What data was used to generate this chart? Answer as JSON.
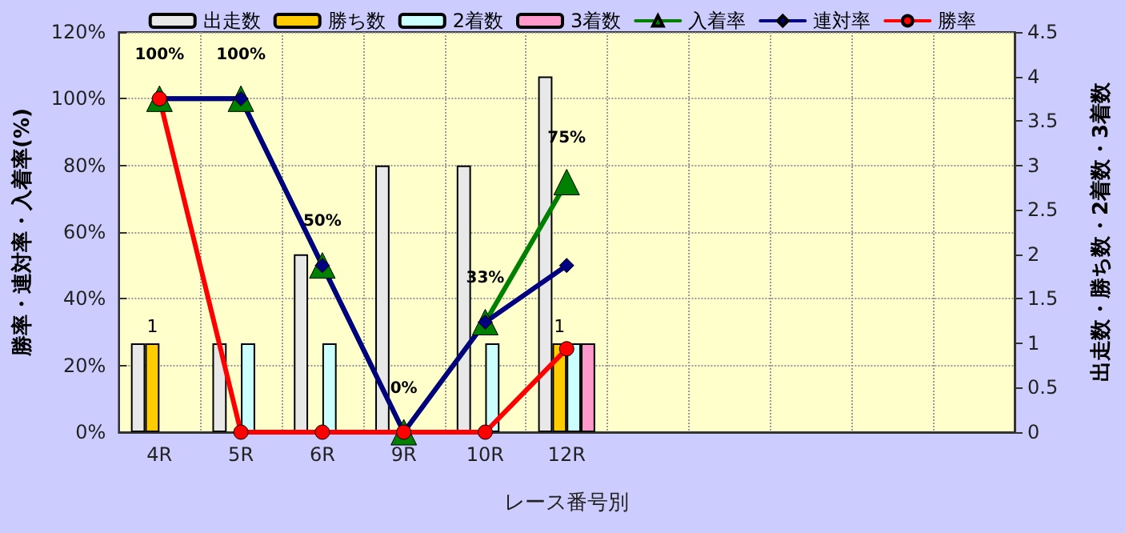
{
  "chart_data": {
    "type": "bar",
    "xlabel": "レース番号別",
    "ylabel": "勝率・連対率・入着率(%)",
    "y2label": "出走数・勝ち数・2着数・3着数",
    "categories": [
      "4R",
      "5R",
      "6R",
      "9R",
      "10R",
      "12R",
      null,
      null,
      null,
      null,
      null
    ],
    "series": [
      {
        "name": "出走数",
        "axis": "y2",
        "color": "#e8e8e8",
        "values": [
          1,
          1,
          2,
          3,
          3,
          4,
          null,
          null,
          null,
          null,
          null
        ]
      },
      {
        "name": "勝ち数",
        "axis": "y2",
        "color": "#ffcc00",
        "values": [
          1,
          0,
          0,
          0,
          0,
          1,
          null,
          null,
          null,
          null,
          null
        ],
        "value_labels": [
          "1",
          null,
          null,
          null,
          null,
          "1",
          null,
          null,
          null,
          null,
          null
        ]
      },
      {
        "name": "2着数",
        "axis": "y2",
        "color": "#ccffff",
        "values": [
          0,
          1,
          1,
          0,
          1,
          1,
          null,
          null,
          null,
          null,
          null
        ]
      },
      {
        "name": "3着数",
        "axis": "y2",
        "color": "#ff99cc",
        "values": [
          0,
          0,
          0,
          0,
          0,
          1,
          null,
          null,
          null,
          null,
          null
        ]
      },
      {
        "name": "入着率",
        "type": "line",
        "color": "#008000",
        "marker": "triangle",
        "values": [
          100,
          100,
          50,
          0,
          33,
          75,
          null,
          null,
          null,
          null,
          null
        ],
        "value_labels": [
          "100%",
          "100%",
          "50%",
          "0%",
          "33%",
          "75%",
          null,
          null,
          null,
          null,
          null
        ]
      },
      {
        "name": "連対率",
        "type": "line",
        "color": "#000080",
        "marker": "diamond",
        "values": [
          100,
          100,
          50,
          0,
          33,
          50,
          null,
          null,
          null,
          null,
          null
        ]
      },
      {
        "name": "勝率",
        "type": "line",
        "color": "#ff0000",
        "marker": "circle",
        "values": [
          100,
          0,
          0,
          0,
          0,
          25,
          null,
          null,
          null,
          null,
          null
        ]
      }
    ],
    "ylim": [
      0,
      120
    ],
    "yticks": [
      {
        "value": 0,
        "label": "0%"
      },
      {
        "value": 20,
        "label": "20%"
      },
      {
        "value": 40,
        "label": "40%"
      },
      {
        "value": 60,
        "label": "60%"
      },
      {
        "value": 80,
        "label": "80%"
      },
      {
        "value": 100,
        "label": "100%"
      },
      {
        "value": 120,
        "label": "120%"
      }
    ],
    "y2lim": [
      0,
      4.5
    ],
    "y2ticks": [
      0,
      0.5,
      1,
      1.5,
      2,
      2.5,
      3,
      3.5,
      4,
      4.5
    ],
    "grid": true,
    "legend": "top",
    "line_style": "solid"
  }
}
